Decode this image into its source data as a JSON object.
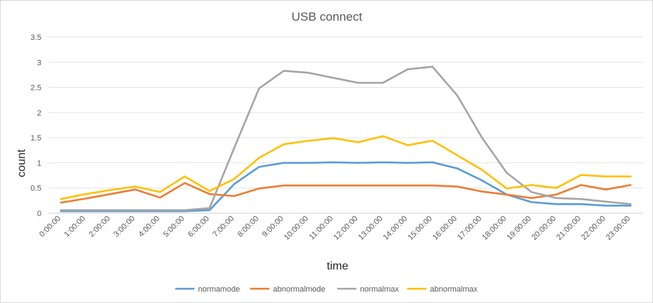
{
  "chart_data": {
    "type": "line",
    "title": "USB connect",
    "xlabel": "time",
    "ylabel": "count",
    "ylim": [
      0,
      3.5
    ],
    "yticks": [
      "0",
      "0.5",
      "1",
      "1.5",
      "2",
      "2.5",
      "3",
      "3.5"
    ],
    "grid": true,
    "legend_position": "bottom",
    "categories": [
      "0:00:00",
      "1:00:00",
      "2:00:00",
      "3:00:00",
      "4:00:00",
      "5:00:00",
      "6:00:00",
      "7:00:00",
      "8:00:00",
      "9:00:00",
      "10:00:00",
      "11:00:00",
      "12:00:00",
      "13:00:00",
      "14:00:00",
      "15:00:00",
      "16:00:00",
      "17:00:00",
      "18:00:00",
      "19:00:00",
      "20:00:00",
      "21:00:00",
      "22:00:00",
      "23:00:00"
    ],
    "series": [
      {
        "name": "normamode",
        "color": "#5b9bd5",
        "values": [
          0.04,
          0.04,
          0.04,
          0.04,
          0.04,
          0.04,
          0.06,
          0.58,
          0.92,
          1.0,
          1.0,
          1.01,
          1.0,
          1.01,
          1.0,
          1.01,
          0.89,
          0.65,
          0.37,
          0.22,
          0.18,
          0.18,
          0.15,
          0.15
        ]
      },
      {
        "name": "abnormalmode",
        "color": "#ed7d31",
        "values": [
          0.21,
          0.29,
          0.38,
          0.47,
          0.31,
          0.6,
          0.38,
          0.34,
          0.49,
          0.55,
          0.55,
          0.55,
          0.55,
          0.55,
          0.55,
          0.55,
          0.53,
          0.43,
          0.37,
          0.3,
          0.37,
          0.56,
          0.47,
          0.56
        ]
      },
      {
        "name": "normalmax",
        "color": "#a5a5a5",
        "values": [
          0.06,
          0.06,
          0.06,
          0.06,
          0.06,
          0.06,
          0.1,
          1.3,
          2.48,
          2.83,
          2.79,
          2.69,
          2.59,
          2.59,
          2.86,
          2.91,
          2.34,
          1.5,
          0.8,
          0.42,
          0.3,
          0.28,
          0.23,
          0.18
        ]
      },
      {
        "name": "abnormalmax",
        "color": "#ffc000",
        "values": [
          0.28,
          0.38,
          0.46,
          0.53,
          0.42,
          0.73,
          0.44,
          0.68,
          1.1,
          1.37,
          1.44,
          1.49,
          1.41,
          1.53,
          1.35,
          1.44,
          1.15,
          0.86,
          0.49,
          0.56,
          0.5,
          0.76,
          0.73,
          0.73
        ]
      }
    ]
  }
}
